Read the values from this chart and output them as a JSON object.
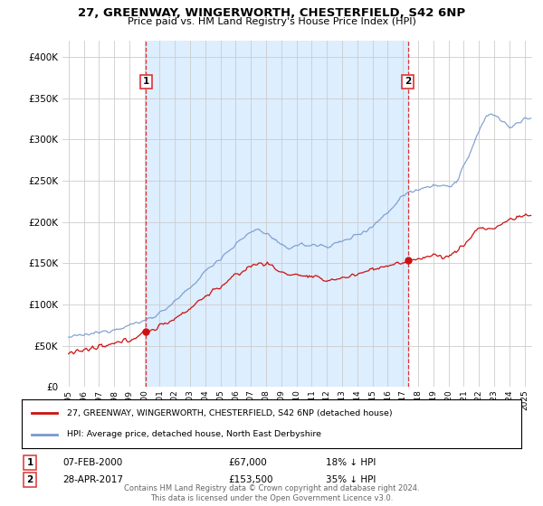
{
  "title_line1": "27, GREENWAY, WINGERWORTH, CHESTERFIELD, S42 6NP",
  "title_line2": "Price paid vs. HM Land Registry's House Price Index (HPI)",
  "background_color": "#ffffff",
  "plot_bg_color": "#ffffff",
  "grid_color": "#cccccc",
  "shade_color": "#ddeeff",
  "legend_entry1": "27, GREENWAY, WINGERWORTH, CHESTERFIELD, S42 6NP (detached house)",
  "legend_entry2": "HPI: Average price, detached house, North East Derbyshire",
  "sale1_label": "1",
  "sale1_date": "07-FEB-2000",
  "sale1_price": "£67,000",
  "sale1_hpi": "18% ↓ HPI",
  "sale1_year": 2000.1,
  "sale1_value": 67000,
  "sale2_label": "2",
  "sale2_date": "28-APR-2017",
  "sale2_price": "£153,500",
  "sale2_hpi": "35% ↓ HPI",
  "sale2_year": 2017.32,
  "sale2_value": 153500,
  "footer": "Contains HM Land Registry data © Crown copyright and database right 2024.\nThis data is licensed under the Open Government Licence v3.0.",
  "ylim_min": 0,
  "ylim_max": 420000,
  "xlim_min": 1994.6,
  "xlim_max": 2025.5,
  "hpi_color": "#7799cc",
  "price_color": "#cc1111",
  "sale_marker_color": "#cc1111",
  "vline_color": "#dd3333"
}
